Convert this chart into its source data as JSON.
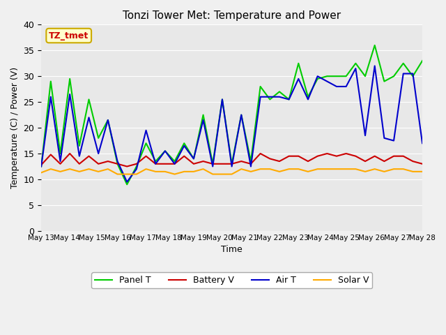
{
  "title": "Tonzi Tower Met: Temperature and Power",
  "xlabel": "Time",
  "ylabel": "Temperature (C) / Power (V)",
  "ylim": [
    0,
    40
  ],
  "yticks": [
    0,
    5,
    10,
    15,
    20,
    25,
    30,
    35,
    40
  ],
  "xtick_labels": [
    "May 13",
    "May 14",
    "May 15",
    "May 16",
    "May 17",
    "May 18",
    "May 19",
    "May 20",
    "May 21",
    "May 22",
    "May 23",
    "May 24",
    "May 25",
    "May 26",
    "May 27",
    "May 28"
  ],
  "bg_color": "#e8e8e8",
  "fig_color": "#f0f0f0",
  "legend_labels": [
    "Panel T",
    "Battery V",
    "Air T",
    "Solar V"
  ],
  "legend_colors": [
    "#00cc00",
    "#cc0000",
    "#0000cc",
    "#ffaa00"
  ],
  "annotation_text": "TZ_tmet",
  "annotation_color": "#cc0000",
  "annotation_bg": "#ffffcc",
  "annotation_border": "#ccaa00",
  "panel_t": [
    12.5,
    29.0,
    15.0,
    29.5,
    16.5,
    25.5,
    18.0,
    21.5,
    13.0,
    9.0,
    12.5,
    17.0,
    13.5,
    15.5,
    13.5,
    17.0,
    14.0,
    22.5,
    13.0,
    25.5,
    13.0,
    22.5,
    13.5,
    28.0,
    25.5,
    27.0,
    25.5,
    32.5,
    26.0,
    29.5,
    30.0,
    30.0,
    30.0,
    32.5,
    30.0,
    36.0,
    29.0,
    30.0,
    32.5,
    30.0,
    33.0
  ],
  "battery_v": [
    12.8,
    14.8,
    13.0,
    15.0,
    13.0,
    14.5,
    13.0,
    13.5,
    13.0,
    12.5,
    13.0,
    14.5,
    13.0,
    13.0,
    13.0,
    14.5,
    13.0,
    13.5,
    13.0,
    13.0,
    13.0,
    13.5,
    13.0,
    15.0,
    14.0,
    13.5,
    14.5,
    14.5,
    13.5,
    14.5,
    15.0,
    14.5,
    15.0,
    14.5,
    13.5,
    14.5,
    13.5,
    14.5,
    14.5,
    13.5,
    13.0
  ],
  "air_t": [
    12.5,
    26.0,
    13.5,
    26.5,
    14.5,
    22.0,
    15.0,
    21.5,
    13.5,
    9.5,
    12.0,
    19.5,
    13.0,
    15.5,
    13.0,
    16.5,
    14.0,
    21.5,
    12.5,
    25.5,
    12.5,
    22.5,
    12.5,
    26.0,
    26.0,
    26.0,
    25.5,
    29.5,
    25.5,
    30.0,
    29.0,
    28.0,
    28.0,
    31.5,
    18.5,
    32.0,
    18.0,
    17.5,
    30.5,
    30.5,
    17.0
  ],
  "solar_v": [
    11.3,
    12.0,
    11.5,
    12.0,
    11.5,
    12.0,
    11.5,
    12.0,
    11.0,
    11.0,
    11.0,
    12.0,
    11.5,
    11.5,
    11.0,
    11.5,
    11.5,
    12.0,
    11.0,
    11.0,
    11.0,
    12.0,
    11.5,
    12.0,
    12.0,
    11.5,
    12.0,
    12.0,
    11.5,
    12.0,
    12.0,
    12.0,
    12.0,
    12.0,
    11.5,
    12.0,
    11.5,
    12.0,
    12.0,
    11.5,
    11.5
  ]
}
